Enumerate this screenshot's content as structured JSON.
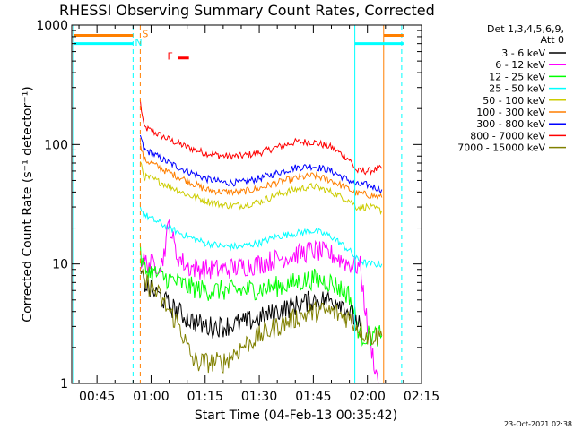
{
  "chart_data": {
    "type": "line",
    "title": "RHESSI Observing Summary Count Rates, Corrected",
    "xlabel": "Start Time (04-Feb-13 00:35:42)",
    "ylabel": "Corrected Count Rate (s⁻¹ detector⁻¹)",
    "yscale": "log",
    "ylim": [
      1,
      1000
    ],
    "xlim_minutes": [
      38,
      135
    ],
    "y_ticks": [
      {
        "value": 1,
        "label": "1"
      },
      {
        "value": 10,
        "label": "10"
      },
      {
        "value": 100,
        "label": "100"
      },
      {
        "value": 1000,
        "label": "1000"
      }
    ],
    "x_ticks": [
      {
        "minutes": 45,
        "label": "00:45"
      },
      {
        "minutes": 60,
        "label": "01:00"
      },
      {
        "minutes": 75,
        "label": "01:15"
      },
      {
        "minutes": 90,
        "label": "01:30"
      },
      {
        "minutes": 105,
        "label": "01:45"
      },
      {
        "minutes": 120,
        "label": "02:00"
      },
      {
        "minutes": 135,
        "label": "02:15"
      }
    ],
    "legend": {
      "placement": "right",
      "header": [
        "Det 1,3,4,5,6,9,",
        "Att 0"
      ],
      "entries": [
        {
          "label": "3 - 6 keV",
          "color": "#000000"
        },
        {
          "label": "6 - 12 keV",
          "color": "#ff00ff"
        },
        {
          "label": "12 - 25 keV",
          "color": "#00ff00"
        },
        {
          "label": "25 - 50 keV",
          "color": "#00ffff"
        },
        {
          "label": "50 - 100 keV",
          "color": "#cccc00"
        },
        {
          "label": "100 - 300 keV",
          "color": "#ff7f00"
        },
        {
          "label": "300 - 800 keV",
          "color": "#0000ff"
        },
        {
          "label": "800 - 7000 keV",
          "color": "#ff0000"
        },
        {
          "label": "7000 - 15000 keV",
          "color": "#808000"
        }
      ]
    },
    "series": [
      {
        "name": "800 - 7000 keV",
        "color": "#ff0000",
        "x": [
          57,
          58,
          60,
          65,
          70,
          75,
          80,
          85,
          90,
          95,
          100,
          105,
          110,
          115,
          117,
          120,
          124
        ],
        "y": [
          230,
          140,
          130,
          110,
          95,
          85,
          80,
          80,
          85,
          95,
          105,
          105,
          95,
          75,
          60,
          60,
          63
        ]
      },
      {
        "name": "300 - 800 keV",
        "color": "#0000ff",
        "x": [
          57,
          58,
          60,
          65,
          70,
          75,
          80,
          85,
          90,
          95,
          100,
          105,
          110,
          115,
          117,
          120,
          124
        ],
        "y": [
          120,
          90,
          85,
          70,
          60,
          52,
          48,
          48,
          52,
          58,
          64,
          66,
          60,
          50,
          46,
          46,
          42
        ]
      },
      {
        "name": "100 - 300 keV",
        "color": "#ff7f00",
        "x": [
          57,
          58,
          60,
          65,
          70,
          75,
          80,
          85,
          90,
          95,
          100,
          105,
          110,
          115,
          117,
          120,
          124
        ],
        "y": [
          100,
          75,
          70,
          58,
          50,
          42,
          40,
          40,
          43,
          48,
          52,
          55,
          50,
          42,
          39,
          38,
          36
        ]
      },
      {
        "name": "50 - 100 keV",
        "color": "#cccc00",
        "x": [
          57,
          58,
          60,
          65,
          70,
          75,
          80,
          85,
          90,
          95,
          100,
          105,
          110,
          115,
          117,
          120,
          124
        ],
        "y": [
          75,
          54,
          52,
          45,
          38,
          34,
          31,
          31,
          33,
          38,
          42,
          45,
          40,
          34,
          30,
          30,
          28
        ]
      },
      {
        "name": "25 - 50 keV",
        "color": "#00ffff",
        "x": [
          57,
          58,
          60,
          65,
          70,
          75,
          80,
          85,
          90,
          95,
          100,
          105,
          110,
          115,
          117,
          120,
          124
        ],
        "y": [
          30,
          26,
          24,
          20,
          17,
          15,
          14,
          14,
          15,
          17,
          18,
          19,
          17,
          13,
          11,
          10,
          10
        ]
      },
      {
        "name": "6 - 12 keV",
        "color": "#ff00ff",
        "x": [
          57,
          58,
          60,
          63,
          65,
          67,
          70,
          75,
          80,
          85,
          90,
          95,
          100,
          105,
          110,
          115,
          118,
          120,
          123,
          124
        ],
        "y": [
          11,
          10.5,
          10,
          10,
          22,
          12,
          9.5,
          9,
          9,
          9.5,
          10,
          11,
          12,
          13,
          12,
          10,
          9.5,
          3,
          1,
          1
        ]
      },
      {
        "name": "12 - 25 keV",
        "color": "#00ff00",
        "x": [
          57,
          58,
          60,
          65,
          70,
          75,
          80,
          85,
          90,
          95,
          100,
          105,
          110,
          115,
          118,
          120,
          124
        ],
        "y": [
          12,
          9,
          8.5,
          7.5,
          6.5,
          6,
          6,
          6,
          6.2,
          6.5,
          7,
          7.5,
          7,
          5.5,
          2.5,
          2.5,
          2.5
        ]
      },
      {
        "name": "3 - 6 keV",
        "color": "#000000",
        "x": [
          57,
          58,
          60,
          62,
          65,
          70,
          75,
          80,
          85,
          90,
          95,
          100,
          105,
          110,
          112,
          115,
          118
        ],
        "y": [
          8,
          7,
          6,
          5.5,
          4.5,
          3.5,
          3,
          3,
          3.2,
          3.5,
          4,
          4.5,
          5,
          5,
          5,
          4,
          3
        ]
      },
      {
        "name": "7000 - 15000 keV",
        "color": "#808000",
        "x": [
          57,
          58,
          60,
          62,
          65,
          68,
          70,
          72,
          75,
          80,
          85,
          90,
          95,
          100,
          105,
          110,
          115,
          120,
          124
        ],
        "y": [
          8,
          7,
          6.5,
          5.5,
          4,
          3,
          2,
          1.5,
          1.5,
          1.5,
          2,
          2.5,
          3,
          3.5,
          4,
          4,
          3.5,
          2.5,
          2.5
        ]
      }
    ],
    "vertical_markers": [
      {
        "minutes": 38.5,
        "color": "#00ffff",
        "style": "solid"
      },
      {
        "minutes": 55,
        "color": "#00ffff",
        "style": "dashed"
      },
      {
        "minutes": 57,
        "color": "#ff7f00",
        "style": "dashed"
      },
      {
        "minutes": 116.5,
        "color": "#00ffff",
        "style": "solid"
      },
      {
        "minutes": 124.5,
        "color": "#ff7f00",
        "style": "solid"
      },
      {
        "minutes": 129.5,
        "color": "#00ffff",
        "style": "dashed"
      }
    ],
    "flag_bars": [
      {
        "x_start": 38.5,
        "x_end": 55,
        "y": 820,
        "color": "#ff7f00"
      },
      {
        "x_start": 38.5,
        "x_end": 55,
        "y": 700,
        "color": "#00ffff"
      },
      {
        "x_start": 124.5,
        "x_end": 130,
        "y": 820,
        "color": "#ff7f00"
      },
      {
        "x_start": 116.5,
        "x_end": 130,
        "y": 700,
        "color": "#00ffff"
      }
    ],
    "annotations": [
      {
        "text": "S",
        "color": "#ff7f00",
        "minutes": 57.5,
        "value": 850
      },
      {
        "text": "N",
        "color": "#00ffff",
        "minutes": 55.5,
        "value": 720
      },
      {
        "text": "F",
        "color": "#ff0000",
        "minutes": 64.5,
        "value": 550
      }
    ],
    "flare_bar": {
      "x_start": 67.5,
      "x_end": 70.5,
      "y": 530,
      "color": "#ff0000"
    },
    "timestamp": "23-Oct-2021 02:38"
  }
}
